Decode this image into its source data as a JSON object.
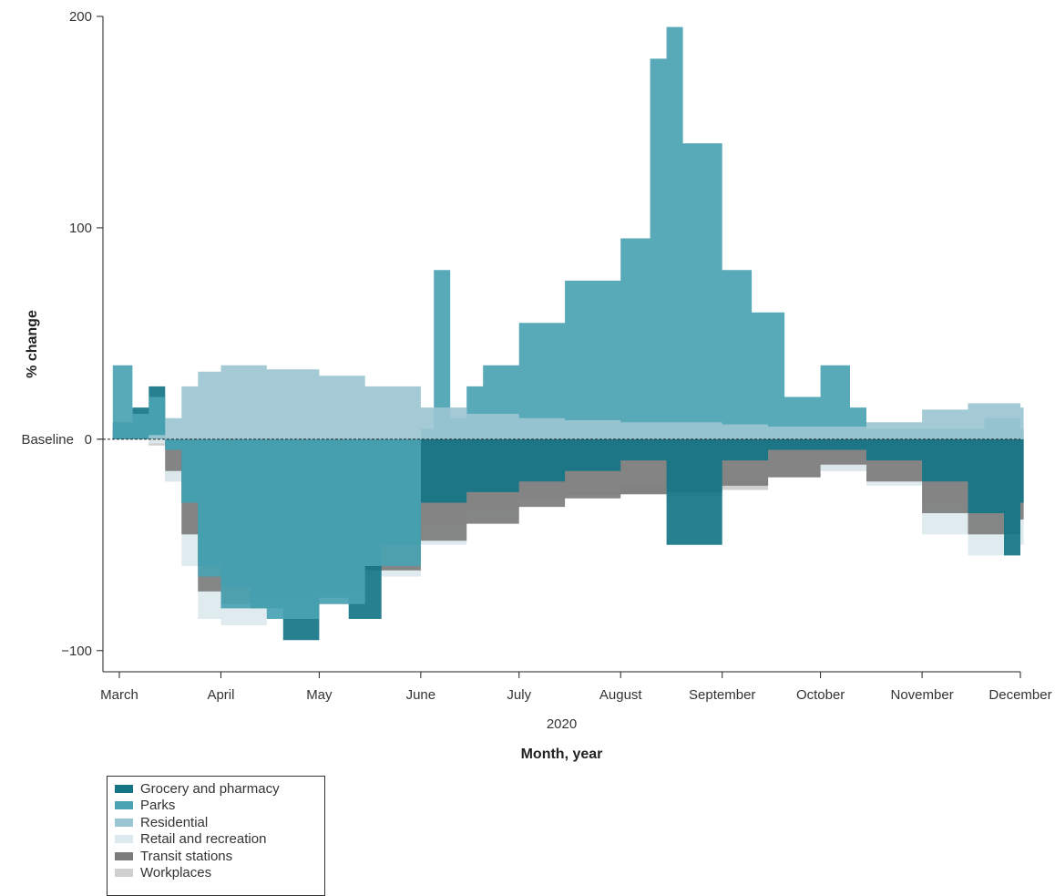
{
  "chart_data": {
    "type": "bar",
    "title": "",
    "ylabel": "% change",
    "xlabel": "Month, year",
    "year_label": "2020",
    "baseline_label": "Baseline",
    "ylim": [
      -110,
      200
    ],
    "yticks": [
      200,
      100,
      0,
      -100
    ],
    "ytick_labels": [
      "200",
      "100",
      "0",
      "−100"
    ],
    "xlim": [
      "2020-02-25",
      "2020-12-01"
    ],
    "month_ticks": [
      {
        "label": "March",
        "date": "2020-03-01"
      },
      {
        "label": "April",
        "date": "2020-04-01"
      },
      {
        "label": "May",
        "date": "2020-05-01"
      },
      {
        "label": "June",
        "date": "2020-06-01"
      },
      {
        "label": "July",
        "date": "2020-07-01"
      },
      {
        "label": "August",
        "date": "2020-08-01"
      },
      {
        "label": "September",
        "date": "2020-09-01"
      },
      {
        "label": "October",
        "date": "2020-10-01"
      },
      {
        "label": "November",
        "date": "2020-11-01"
      },
      {
        "label": "December",
        "date": "2020-12-01"
      }
    ],
    "series": [
      {
        "name": "Workplaces",
        "color": "#cfcfcf",
        "points": [
          [
            "2020-02-28",
            0
          ],
          [
            "2020-03-10",
            -3
          ],
          [
            "2020-03-15",
            -20
          ],
          [
            "2020-03-20",
            -45
          ],
          [
            "2020-03-25",
            -65
          ],
          [
            "2020-04-01",
            -70
          ],
          [
            "2020-04-15",
            -68
          ],
          [
            "2020-05-01",
            -62
          ],
          [
            "2020-05-15",
            -52
          ],
          [
            "2020-06-01",
            -40
          ],
          [
            "2020-06-15",
            -34
          ],
          [
            "2020-07-01",
            -28
          ],
          [
            "2020-07-15",
            -26
          ],
          [
            "2020-08-01",
            -26
          ],
          [
            "2020-08-15",
            -27
          ],
          [
            "2020-09-01",
            -24
          ],
          [
            "2020-09-15",
            -18
          ],
          [
            "2020-10-01",
            -15
          ],
          [
            "2020-10-15",
            -20
          ],
          [
            "2020-11-01",
            -30
          ],
          [
            "2020-11-15",
            -35
          ],
          [
            "2020-12-01",
            -32
          ]
        ]
      },
      {
        "name": "Retail and recreation",
        "color": "#dde9ee",
        "points": [
          [
            "2020-02-28",
            2
          ],
          [
            "2020-03-10",
            -2
          ],
          [
            "2020-03-15",
            -20
          ],
          [
            "2020-03-20",
            -60
          ],
          [
            "2020-03-25",
            -85
          ],
          [
            "2020-04-01",
            -88
          ],
          [
            "2020-04-15",
            -85
          ],
          [
            "2020-05-01",
            -78
          ],
          [
            "2020-05-15",
            -65
          ],
          [
            "2020-06-01",
            -50
          ],
          [
            "2020-06-15",
            -38
          ],
          [
            "2020-07-01",
            -28
          ],
          [
            "2020-07-15",
            -25
          ],
          [
            "2020-08-01",
            -22
          ],
          [
            "2020-08-15",
            -20
          ],
          [
            "2020-09-01",
            -20
          ],
          [
            "2020-09-15",
            -17
          ],
          [
            "2020-10-01",
            -15
          ],
          [
            "2020-10-15",
            -22
          ],
          [
            "2020-11-01",
            -45
          ],
          [
            "2020-11-15",
            -55
          ],
          [
            "2020-12-01",
            -50
          ]
        ]
      },
      {
        "name": "Transit stations",
        "color": "#7c7c7c",
        "points": [
          [
            "2020-02-28",
            5
          ],
          [
            "2020-03-10",
            0
          ],
          [
            "2020-03-15",
            -15
          ],
          [
            "2020-03-20",
            -45
          ],
          [
            "2020-03-25",
            -72
          ],
          [
            "2020-04-01",
            -78
          ],
          [
            "2020-04-15",
            -78
          ],
          [
            "2020-05-01",
            -72
          ],
          [
            "2020-05-15",
            -62
          ],
          [
            "2020-06-01",
            -48
          ],
          [
            "2020-06-15",
            -40
          ],
          [
            "2020-07-01",
            -32
          ],
          [
            "2020-07-15",
            -28
          ],
          [
            "2020-08-01",
            -26
          ],
          [
            "2020-08-15",
            -25
          ],
          [
            "2020-09-01",
            -22
          ],
          [
            "2020-09-15",
            -18
          ],
          [
            "2020-10-01",
            -12
          ],
          [
            "2020-10-15",
            -20
          ],
          [
            "2020-11-01",
            -35
          ],
          [
            "2020-11-15",
            -45
          ],
          [
            "2020-12-01",
            -38
          ]
        ]
      },
      {
        "name": "Grocery and pharmacy",
        "color": "#137585",
        "points": [
          [
            "2020-02-28",
            8
          ],
          [
            "2020-03-05",
            15
          ],
          [
            "2020-03-10",
            25
          ],
          [
            "2020-03-15",
            -5
          ],
          [
            "2020-03-20",
            -30
          ],
          [
            "2020-03-25",
            -60
          ],
          [
            "2020-04-01",
            -70
          ],
          [
            "2020-04-10",
            -80
          ],
          [
            "2020-04-20",
            -95
          ],
          [
            "2020-05-01",
            -75
          ],
          [
            "2020-05-10",
            -85
          ],
          [
            "2020-05-20",
            -50
          ],
          [
            "2020-06-01",
            -30
          ],
          [
            "2020-06-15",
            -25
          ],
          [
            "2020-07-01",
            -20
          ],
          [
            "2020-07-15",
            -15
          ],
          [
            "2020-08-01",
            -10
          ],
          [
            "2020-08-15",
            -50
          ],
          [
            "2020-09-01",
            -10
          ],
          [
            "2020-09-15",
            -5
          ],
          [
            "2020-10-01",
            -5
          ],
          [
            "2020-10-15",
            -10
          ],
          [
            "2020-11-01",
            -20
          ],
          [
            "2020-11-15",
            -35
          ],
          [
            "2020-11-26",
            -55
          ],
          [
            "2020-12-01",
            -30
          ]
        ]
      },
      {
        "name": "Parks",
        "color": "#4aa3b3",
        "points": [
          [
            "2020-02-28",
            35
          ],
          [
            "2020-03-05",
            12
          ],
          [
            "2020-03-10",
            20
          ],
          [
            "2020-03-15",
            -5
          ],
          [
            "2020-03-20",
            -30
          ],
          [
            "2020-03-25",
            -65
          ],
          [
            "2020-04-01",
            -80
          ],
          [
            "2020-04-15",
            -85
          ],
          [
            "2020-05-01",
            -78
          ],
          [
            "2020-05-15",
            -60
          ],
          [
            "2020-06-01",
            5
          ],
          [
            "2020-06-05",
            80
          ],
          [
            "2020-06-10",
            10
          ],
          [
            "2020-06-15",
            25
          ],
          [
            "2020-06-20",
            35
          ],
          [
            "2020-07-01",
            55
          ],
          [
            "2020-07-15",
            75
          ],
          [
            "2020-08-01",
            95
          ],
          [
            "2020-08-10",
            180
          ],
          [
            "2020-08-15",
            195
          ],
          [
            "2020-08-20",
            140
          ],
          [
            "2020-09-01",
            80
          ],
          [
            "2020-09-10",
            60
          ],
          [
            "2020-09-20",
            20
          ],
          [
            "2020-10-01",
            35
          ],
          [
            "2020-10-10",
            15
          ],
          [
            "2020-10-15",
            5
          ],
          [
            "2020-11-01",
            5
          ],
          [
            "2020-11-20",
            10
          ],
          [
            "2020-12-01",
            5
          ]
        ]
      },
      {
        "name": "Residential",
        "color": "#9bc6d1",
        "points": [
          [
            "2020-02-28",
            0
          ],
          [
            "2020-03-10",
            2
          ],
          [
            "2020-03-15",
            10
          ],
          [
            "2020-03-20",
            25
          ],
          [
            "2020-03-25",
            32
          ],
          [
            "2020-04-01",
            35
          ],
          [
            "2020-04-15",
            33
          ],
          [
            "2020-05-01",
            30
          ],
          [
            "2020-05-15",
            25
          ],
          [
            "2020-06-01",
            15
          ],
          [
            "2020-06-15",
            12
          ],
          [
            "2020-07-01",
            10
          ],
          [
            "2020-07-15",
            9
          ],
          [
            "2020-08-01",
            8
          ],
          [
            "2020-08-15",
            8
          ],
          [
            "2020-09-01",
            7
          ],
          [
            "2020-09-15",
            6
          ],
          [
            "2020-10-01",
            6
          ],
          [
            "2020-10-15",
            8
          ],
          [
            "2020-11-01",
            14
          ],
          [
            "2020-11-15",
            17
          ],
          [
            "2020-12-01",
            15
          ]
        ]
      }
    ],
    "legend": [
      {
        "name": "Grocery and pharmacy",
        "color": "#137585"
      },
      {
        "name": "Parks",
        "color": "#4aa3b3"
      },
      {
        "name": "Residential",
        "color": "#9bc6d1"
      },
      {
        "name": "Retail and recreation",
        "color": "#dde9ee"
      },
      {
        "name": "Transit stations",
        "color": "#7c7c7c"
      },
      {
        "name": "Workplaces",
        "color": "#cfcfcf"
      }
    ]
  }
}
